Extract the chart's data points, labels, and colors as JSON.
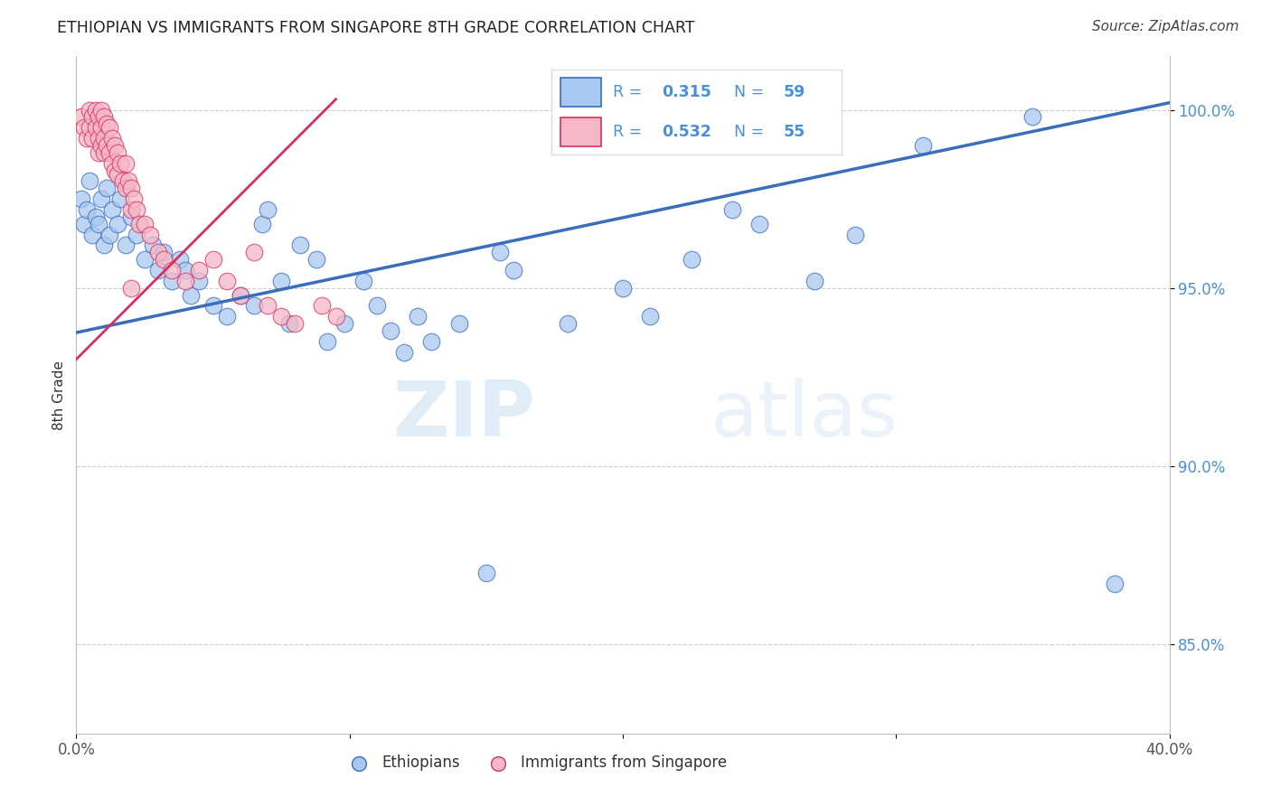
{
  "title": "ETHIOPIAN VS IMMIGRANTS FROM SINGAPORE 8TH GRADE CORRELATION CHART",
  "source": "Source: ZipAtlas.com",
  "ylabel": "8th Grade",
  "xlim": [
    0.0,
    0.4
  ],
  "ylim": [
    0.825,
    1.015
  ],
  "blue_R": 0.315,
  "blue_N": 59,
  "pink_R": 0.532,
  "pink_N": 55,
  "blue_color": "#a8c8f0",
  "pink_color": "#f5b8c8",
  "blue_line_color": "#3a6dba",
  "pink_line_color": "#d63060",
  "legend_label_blue": "Ethiopians",
  "legend_label_pink": "Immigrants from Singapore",
  "watermark_zip": "ZIP",
  "watermark_atlas": "atlas",
  "y_tick_vals": [
    0.85,
    0.9,
    0.95,
    1.0
  ],
  "y_tick_labels": [
    "85.0%",
    "90.0%",
    "95.0%",
    "100.0%"
  ],
  "x_tick_vals": [
    0.0,
    0.1,
    0.2,
    0.3,
    0.4
  ],
  "x_tick_labels": [
    "0.0%",
    "",
    "",
    "",
    "40.0%"
  ],
  "blue_line_x": [
    0.0,
    0.4
  ],
  "blue_line_y": [
    0.9375,
    1.002
  ],
  "pink_line_x": [
    0.0,
    0.095
  ],
  "pink_line_y": [
    0.93,
    1.003
  ],
  "blue_scatter_x": [
    0.002,
    0.003,
    0.004,
    0.005,
    0.006,
    0.007,
    0.008,
    0.009,
    0.01,
    0.011,
    0.012,
    0.013,
    0.015,
    0.016,
    0.018,
    0.02,
    0.022,
    0.025,
    0.028,
    0.03,
    0.032,
    0.035,
    0.038,
    0.04,
    0.042,
    0.045,
    0.05,
    0.055,
    0.06,
    0.065,
    0.068,
    0.07,
    0.075,
    0.078,
    0.082,
    0.088,
    0.092,
    0.098,
    0.105,
    0.11,
    0.115,
    0.12,
    0.125,
    0.13,
    0.14,
    0.15,
    0.155,
    0.16,
    0.18,
    0.2,
    0.21,
    0.225,
    0.24,
    0.25,
    0.27,
    0.285,
    0.31,
    0.35,
    0.38
  ],
  "blue_scatter_y": [
    0.975,
    0.968,
    0.972,
    0.98,
    0.965,
    0.97,
    0.968,
    0.975,
    0.962,
    0.978,
    0.965,
    0.972,
    0.968,
    0.975,
    0.962,
    0.97,
    0.965,
    0.958,
    0.962,
    0.955,
    0.96,
    0.952,
    0.958,
    0.955,
    0.948,
    0.952,
    0.945,
    0.942,
    0.948,
    0.945,
    0.968,
    0.972,
    0.952,
    0.94,
    0.962,
    0.958,
    0.935,
    0.94,
    0.952,
    0.945,
    0.938,
    0.932,
    0.942,
    0.935,
    0.94,
    0.87,
    0.96,
    0.955,
    0.94,
    0.95,
    0.942,
    0.958,
    0.972,
    0.968,
    0.952,
    0.965,
    0.99,
    0.998,
    0.867
  ],
  "pink_scatter_x": [
    0.002,
    0.003,
    0.004,
    0.005,
    0.005,
    0.006,
    0.006,
    0.007,
    0.007,
    0.008,
    0.008,
    0.008,
    0.009,
    0.009,
    0.009,
    0.01,
    0.01,
    0.01,
    0.011,
    0.011,
    0.012,
    0.012,
    0.013,
    0.013,
    0.014,
    0.014,
    0.015,
    0.015,
    0.016,
    0.017,
    0.018,
    0.018,
    0.019,
    0.02,
    0.02,
    0.021,
    0.022,
    0.023,
    0.025,
    0.027,
    0.03,
    0.032,
    0.035,
    0.04,
    0.045,
    0.05,
    0.055,
    0.06,
    0.065,
    0.07,
    0.075,
    0.08,
    0.09,
    0.095,
    0.02
  ],
  "pink_scatter_y": [
    0.998,
    0.995,
    0.992,
    1.0,
    0.995,
    0.998,
    0.992,
    1.0,
    0.995,
    0.998,
    0.992,
    0.988,
    1.0,
    0.995,
    0.99,
    0.998,
    0.992,
    0.988,
    0.996,
    0.99,
    0.995,
    0.988,
    0.992,
    0.985,
    0.99,
    0.983,
    0.988,
    0.982,
    0.985,
    0.98,
    0.985,
    0.978,
    0.98,
    0.978,
    0.972,
    0.975,
    0.972,
    0.968,
    0.968,
    0.965,
    0.96,
    0.958,
    0.955,
    0.952,
    0.955,
    0.958,
    0.952,
    0.948,
    0.96,
    0.945,
    0.942,
    0.94,
    0.945,
    0.942,
    0.95
  ]
}
